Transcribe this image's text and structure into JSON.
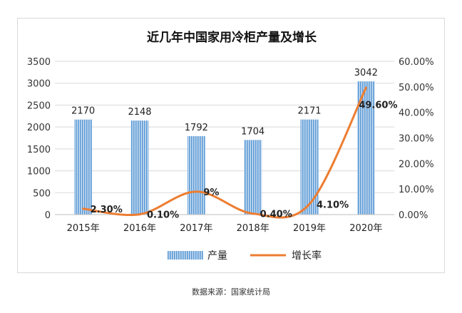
{
  "chart_data": {
    "type": "bar+line",
    "title": "近几年中国家用冷柜产量及增长",
    "categories": [
      "2015年",
      "2016年",
      "2017年",
      "2018年",
      "2019年",
      "2020年"
    ],
    "series": [
      {
        "name": "产量",
        "type": "bar",
        "axis": "left",
        "values": [
          2170,
          2148,
          1792,
          1704,
          2171,
          3042
        ],
        "labels": [
          "2170",
          "2148",
          "1792",
          "1704",
          "2171",
          "3042"
        ],
        "color": "#5b9bd5"
      },
      {
        "name": "增长率",
        "type": "line",
        "axis": "right",
        "values": [
          2.3,
          0.1,
          9,
          0.4,
          4.1,
          49.6
        ],
        "labels": [
          "2.30%",
          "0.10%",
          "9%",
          "0.40%",
          "4.10%",
          "49.60%"
        ],
        "color": "#ed7d31"
      }
    ],
    "y_left": {
      "min": 0,
      "max": 3500,
      "ticks": [
        0,
        500,
        1000,
        1500,
        2000,
        2500,
        3000,
        3500
      ],
      "tick_labels": [
        "0",
        "500",
        "1000",
        "1500",
        "2000",
        "2500",
        "3000",
        "3500"
      ]
    },
    "y_right": {
      "min": 0,
      "max": 60,
      "ticks": [
        0,
        10,
        20,
        30,
        40,
        50,
        60
      ],
      "tick_labels": [
        "0.00%",
        "10.00%",
        "20.00%",
        "30.00%",
        "40.00%",
        "50.00%",
        "60.00%"
      ]
    },
    "grid": true,
    "legend_position": "bottom"
  },
  "source_note": "数据来源：国家统计局"
}
